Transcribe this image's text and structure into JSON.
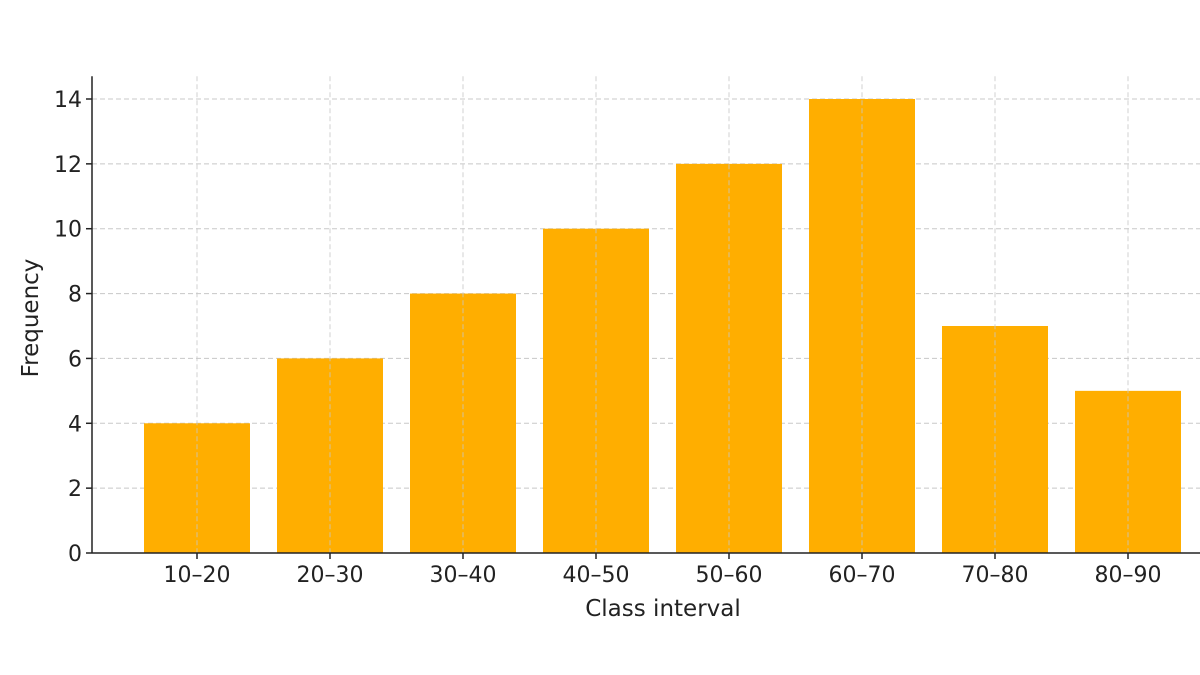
{
  "chart_data": {
    "type": "bar",
    "title": "",
    "xlabel": "Class interval",
    "ylabel": "Frequency",
    "categories": [
      "10–20",
      "20–30",
      "30–40",
      "40–50",
      "50–60",
      "60–70",
      "70–80",
      "80–90"
    ],
    "values": [
      4,
      6,
      8,
      10,
      12,
      14,
      7,
      5
    ],
    "ylim": [
      0,
      14.7
    ],
    "yticks": [
      0,
      2,
      4,
      6,
      8,
      10,
      12,
      14
    ],
    "grid": true,
    "bar_color": "#FFAE00"
  }
}
